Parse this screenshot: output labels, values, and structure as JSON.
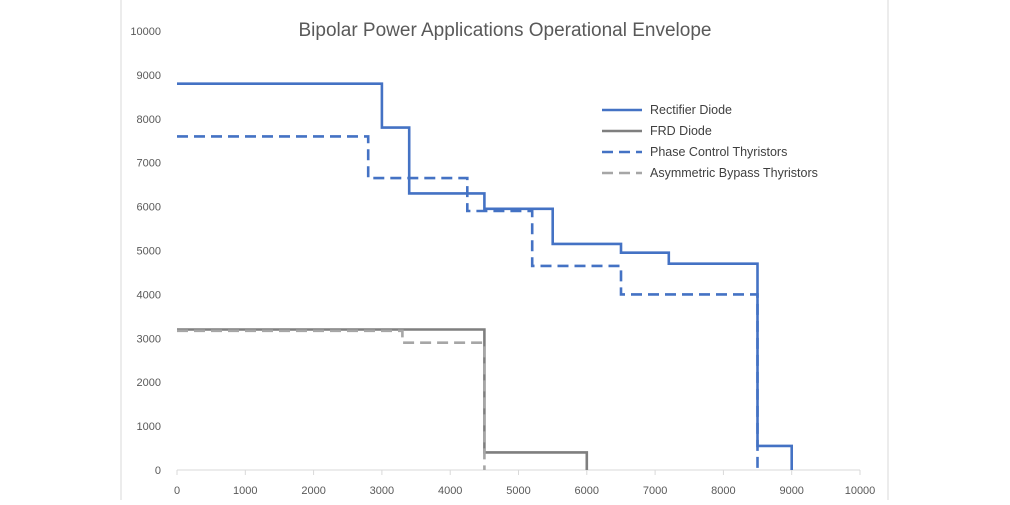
{
  "chart_data": {
    "type": "line",
    "title": "Bipolar Power Applications Operational Envelope",
    "xlabel": "",
    "ylabel": "",
    "xlim": [
      0,
      10000
    ],
    "ylim": [
      0,
      10000
    ],
    "x_ticks": [
      "0",
      "1000",
      "2000",
      "3000",
      "4000",
      "5000",
      "6000",
      "7000",
      "8000",
      "9000",
      "10000"
    ],
    "y_ticks": [
      "0",
      "1000",
      "2000",
      "3000",
      "4000",
      "5000",
      "6000",
      "7000",
      "8000",
      "9000",
      "10000"
    ],
    "grid": false,
    "legend_position": "top-right",
    "series": [
      {
        "name": "Rectifier Diode",
        "color": "#4472c4",
        "dash": "solid",
        "x": [
          0,
          3000,
          3000,
          3400,
          3400,
          4500,
          4500,
          5500,
          5500,
          6500,
          6500,
          7200,
          7200,
          8500,
          8500,
          9000,
          9000
        ],
        "y": [
          8800,
          8800,
          7800,
          7800,
          6300,
          6300,
          5950,
          5950,
          5150,
          5150,
          4950,
          4950,
          4700,
          4700,
          550,
          550,
          0
        ]
      },
      {
        "name": "FRD Diode",
        "color": "#7f7f7f",
        "dash": "solid",
        "x": [
          0,
          4500,
          4500,
          6000,
          6000
        ],
        "y": [
          3200,
          3200,
          400,
          400,
          0
        ]
      },
      {
        "name": "Phase Control Thyristors",
        "color": "#4472c4",
        "dash": "dashed",
        "x": [
          0,
          2800,
          2800,
          4250,
          4250,
          5200,
          5200,
          6500,
          6500,
          8500,
          8500
        ],
        "y": [
          7600,
          7600,
          6650,
          6650,
          5900,
          5900,
          4650,
          4650,
          4000,
          4000,
          0
        ]
      },
      {
        "name": "Asymmetric Bypass Thyristors",
        "color": "#a6a6a6",
        "dash": "dashed",
        "x": [
          0,
          3300,
          3300,
          4500,
          4500
        ],
        "y": [
          3170,
          3170,
          2900,
          2900,
          0
        ]
      }
    ]
  }
}
